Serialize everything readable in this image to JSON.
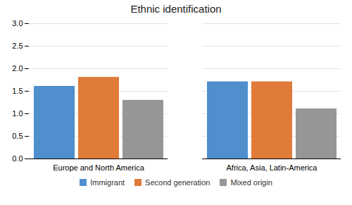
{
  "chart_data": {
    "type": "bar",
    "title": "Ethnic identification",
    "categories": [
      "Europe and North America",
      "Africa, Asia, Latin-America"
    ],
    "series": [
      {
        "name": "Immigrant",
        "color": "#4f8fce",
        "values": [
          1.61,
          1.71
        ]
      },
      {
        "name": "Second generation",
        "color": "#e07b39",
        "values": [
          1.81,
          1.71
        ]
      },
      {
        "name": "Mixed origin",
        "color": "#969696",
        "values": [
          1.3,
          1.11
        ]
      }
    ],
    "ylim": [
      0.0,
      3.0
    ],
    "yticks": [
      {
        "value": 0,
        "label": "0.0"
      },
      0.5,
      {
        "value": 1,
        "label": "1.0"
      },
      1.5,
      {
        "value": 2,
        "label": "2.0"
      },
      2.5,
      {
        "value": 3,
        "label": "3.0"
      }
    ],
    "grid": true,
    "legend": "bottom"
  }
}
